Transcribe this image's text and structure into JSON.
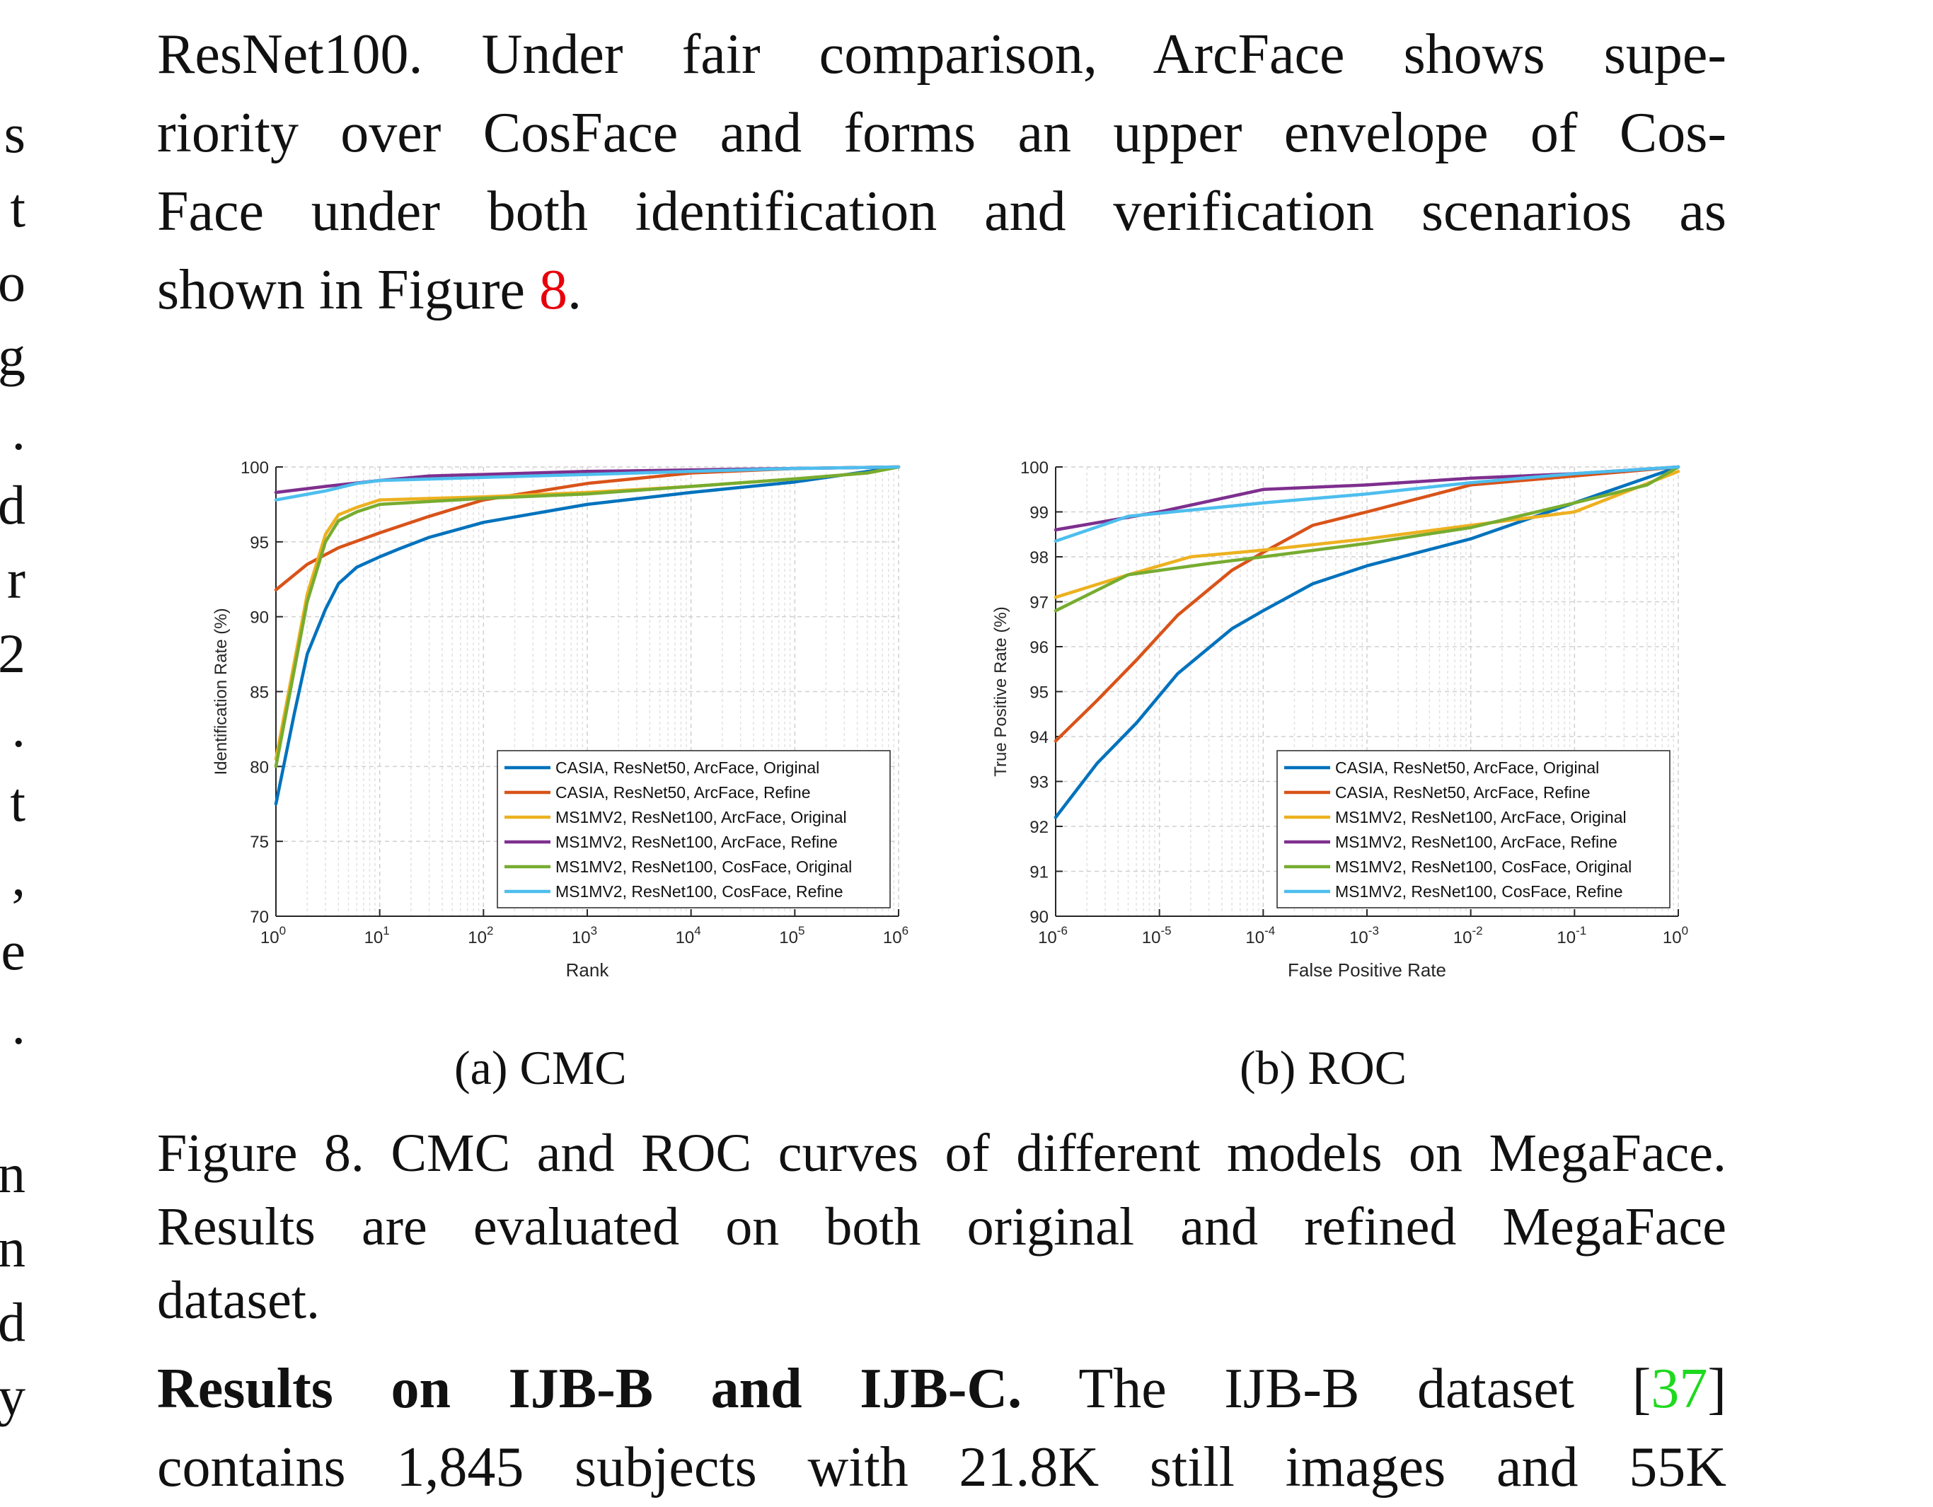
{
  "margin_glyphs": [
    "s",
    "t",
    "o",
    "g",
    ".",
    "d",
    "r",
    "2",
    ".",
    "t",
    ",",
    "e",
    ".",
    "",
    "n",
    "n",
    "d",
    "y"
  ],
  "top_paragraph": {
    "lines": [
      "ResNet100. Under fair comparison, ArcFace shows supe-",
      "riority over CosFace and forms an upper envelope of Cos-",
      "Face under both identification and verification scenarios as"
    ],
    "last_line_prefix": "shown in Figure ",
    "last_line_ref": "8",
    "last_line_suffix": "."
  },
  "subcaptions": {
    "a": "(a) CMC",
    "b": "(b) ROC"
  },
  "figure_caption": {
    "lines": [
      "Figure 8. CMC and ROC curves of different models on MegaFace.",
      "Results are evaluated on both original and refined MegaFace",
      "dataset."
    ]
  },
  "bottom_paragraph": {
    "heading": "Results on IJB-B and IJB-C.",
    "text_before_ref": " The IJB-B dataset [",
    "ref": "37",
    "text_after_ref": "]",
    "line2": "contains 1,845 subjects with 21.8K still images and 55K"
  },
  "colors": {
    "casia_original": "#0072BD",
    "casia_refine": "#D95319",
    "ms1mv2_arcface_original": "#EDB120",
    "ms1mv2_arcface_refine": "#7E2F8E",
    "ms1mv2_cosface_original": "#77AC30",
    "ms1mv2_cosface_refine": "#4DBEEE"
  },
  "chart_data": [
    {
      "type": "line",
      "id": "cmc",
      "xlabel": "Rank",
      "ylabel": "Identification Rate (%)",
      "xscale": "log",
      "xlim": [
        1,
        1000000
      ],
      "ylim": [
        70,
        100
      ],
      "xticks": [
        1,
        10,
        100,
        1000,
        10000,
        100000,
        1000000
      ],
      "xtick_labels": [
        [
          "10",
          "0"
        ],
        [
          "10",
          "1"
        ],
        [
          "10",
          "2"
        ],
        [
          "10",
          "3"
        ],
        [
          "10",
          "4"
        ],
        [
          "10",
          "5"
        ],
        [
          "10",
          "6"
        ]
      ],
      "yticks": [
        70,
        75,
        80,
        85,
        90,
        95,
        100
      ],
      "ytick_labels": [
        "70",
        "75",
        "80",
        "85",
        "90",
        "95",
        "100"
      ],
      "grid": true,
      "legend_position": "bottom-right",
      "series": [
        {
          "name": "CASIA, ResNet50, ArcFace, Original",
          "color_key": "casia_original",
          "x": [
            1,
            1.5,
            2,
            3,
            4,
            6,
            10,
            15,
            30,
            100,
            1000,
            10000,
            100000,
            1000000
          ],
          "y": [
            77.5,
            83.5,
            87.5,
            90.5,
            92.2,
            93.3,
            94.0,
            94.5,
            95.3,
            96.3,
            97.5,
            98.3,
            99.0,
            100
          ]
        },
        {
          "name": "CASIA, ResNet50, ArcFace, Refine",
          "color_key": "casia_refine",
          "x": [
            1,
            2,
            4,
            10,
            30,
            100,
            1000,
            10000,
            100000,
            1000000
          ],
          "y": [
            91.8,
            93.5,
            94.6,
            95.6,
            96.7,
            97.8,
            98.9,
            99.6,
            99.9,
            100
          ]
        },
        {
          "name": "MS1MV2, ResNet100, ArcFace, Original",
          "color_key": "ms1mv2_arcface_original",
          "x": [
            1,
            2,
            3,
            4,
            6,
            10,
            100,
            1000,
            10000,
            100000,
            500000,
            1000000
          ],
          "y": [
            80.5,
            91.5,
            95.5,
            96.8,
            97.3,
            97.8,
            98.0,
            98.3,
            98.7,
            99.2,
            99.6,
            100
          ]
        },
        {
          "name": "MS1MV2, ResNet100, ArcFace, Refine",
          "color_key": "ms1mv2_arcface_refine",
          "x": [
            1,
            3,
            10,
            30,
            100,
            1000,
            10000,
            100000,
            1000000
          ],
          "y": [
            98.3,
            98.7,
            99.1,
            99.4,
            99.5,
            99.7,
            99.8,
            99.9,
            100
          ]
        },
        {
          "name": "MS1MV2, ResNet100, CosFace, Original",
          "color_key": "ms1mv2_cosface_original",
          "x": [
            1,
            2,
            3,
            4,
            6,
            10,
            100,
            1000,
            10000,
            100000,
            500000,
            1000000
          ],
          "y": [
            80.0,
            91.0,
            95.0,
            96.4,
            97.0,
            97.5,
            97.9,
            98.2,
            98.7,
            99.2,
            99.6,
            100
          ]
        },
        {
          "name": "MS1MV2, ResNet100, CosFace, Refine",
          "color_key": "ms1mv2_cosface_refine",
          "x": [
            1,
            3,
            6,
            10,
            100,
            1000,
            10000,
            100000,
            1000000
          ],
          "y": [
            97.8,
            98.4,
            98.9,
            99.1,
            99.3,
            99.5,
            99.7,
            99.9,
            100
          ]
        }
      ]
    },
    {
      "type": "line",
      "id": "roc",
      "xlabel": "False Positive Rate",
      "ylabel": "True Positive Rate (%)",
      "xscale": "log",
      "xlim": [
        1e-06,
        1
      ],
      "ylim": [
        90,
        100
      ],
      "xticks": [
        1e-06,
        1e-05,
        0.0001,
        0.001,
        0.01,
        0.1,
        1
      ],
      "xtick_labels": [
        [
          "10",
          "-6"
        ],
        [
          "10",
          "-5"
        ],
        [
          "10",
          "-4"
        ],
        [
          "10",
          "-3"
        ],
        [
          "10",
          "-2"
        ],
        [
          "10",
          "-1"
        ],
        [
          "10",
          "0"
        ]
      ],
      "yticks": [
        90,
        91,
        92,
        93,
        94,
        95,
        96,
        97,
        98,
        99,
        100
      ],
      "ytick_labels": [
        "90",
        "91",
        "92",
        "93",
        "94",
        "95",
        "96",
        "97",
        "98",
        "99",
        "100"
      ],
      "grid": true,
      "legend_position": "bottom-right",
      "series": [
        {
          "name": "CASIA, ResNet50, ArcFace, Original",
          "color_key": "casia_original",
          "x": [
            1e-06,
            2.5e-06,
            6e-06,
            1.5e-05,
            5e-05,
            0.0001,
            0.0003,
            0.001,
            0.01,
            0.1,
            1
          ],
          "y": [
            92.2,
            93.4,
            94.3,
            95.4,
            96.4,
            96.8,
            97.4,
            97.8,
            98.4,
            99.2,
            100
          ]
        },
        {
          "name": "CASIA, ResNet50, ArcFace, Refine",
          "color_key": "casia_refine",
          "x": [
            1e-06,
            2.5e-06,
            6e-06,
            1.5e-05,
            5e-05,
            0.0001,
            0.0003,
            0.001,
            0.01,
            0.1,
            1
          ],
          "y": [
            93.9,
            94.8,
            95.7,
            96.7,
            97.7,
            98.1,
            98.7,
            99.0,
            99.6,
            99.8,
            100
          ]
        },
        {
          "name": "MS1MV2, ResNet100, ArcFace, Original",
          "color_key": "ms1mv2_arcface_original",
          "x": [
            1e-06,
            5e-06,
            2e-05,
            0.0001,
            0.001,
            0.01,
            0.1,
            1
          ],
          "y": [
            97.1,
            97.6,
            98.0,
            98.15,
            98.4,
            98.7,
            99.0,
            99.9
          ]
        },
        {
          "name": "MS1MV2, ResNet100, ArcFace, Refine",
          "color_key": "ms1mv2_arcface_refine",
          "x": [
            1e-06,
            1e-05,
            0.0001,
            0.001,
            0.01,
            0.1,
            1
          ],
          "y": [
            98.6,
            99.0,
            99.5,
            99.6,
            99.75,
            99.85,
            100
          ]
        },
        {
          "name": "MS1MV2, ResNet100, CosFace, Original",
          "color_key": "ms1mv2_cosface_original",
          "x": [
            1e-06,
            5e-06,
            3e-05,
            0.0001,
            0.001,
            0.01,
            0.1,
            0.5,
            1
          ],
          "y": [
            96.8,
            97.6,
            97.85,
            98.0,
            98.3,
            98.65,
            99.2,
            99.6,
            100
          ]
        },
        {
          "name": "MS1MV2, ResNet100, CosFace, Refine",
          "color_key": "ms1mv2_cosface_refine",
          "x": [
            1e-06,
            5e-06,
            0.0001,
            0.001,
            0.01,
            0.1,
            1
          ],
          "y": [
            98.35,
            98.9,
            99.2,
            99.4,
            99.65,
            99.85,
            100
          ]
        }
      ]
    }
  ]
}
